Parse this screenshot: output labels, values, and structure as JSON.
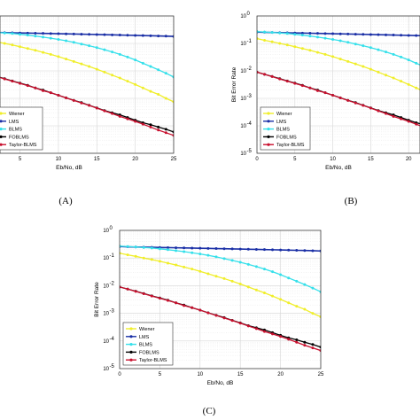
{
  "panels": [
    {
      "panel_label": "(A)",
      "chart_data": {
        "type": "line",
        "xlabel": "Eb/No, dB",
        "ylabel": "",
        "yscale": "log",
        "xlim": [
          0,
          25
        ],
        "ylim": [
          1e-05,
          1
        ],
        "xticks": [
          5,
          10,
          15,
          20,
          25
        ],
        "yticks": [],
        "grid": true,
        "legend_position": "bottom-left",
        "x": [
          0,
          1,
          2,
          3,
          4,
          5,
          6,
          7,
          8,
          9,
          10,
          11,
          12,
          13,
          14,
          15,
          16,
          17,
          18,
          19,
          20,
          21,
          22,
          23,
          24,
          25
        ],
        "series": [
          {
            "name": "Wiener",
            "color": "#f0ee2a",
            "values": [
              0.15,
              0.13,
              0.115,
              0.1,
              0.088,
              0.076,
              0.065,
              0.056,
              0.047,
              0.04,
              0.033,
              0.027,
              0.022,
              0.018,
              0.0145,
              0.0115,
              0.009,
              0.007,
              0.0055,
              0.0042,
              0.0032,
              0.0024,
              0.0018,
              0.0014,
              0.001,
              0.00075
            ]
          },
          {
            "name": "LMS",
            "color": "#1a2fa6",
            "values": [
              0.26,
              0.255,
              0.25,
              0.247,
              0.244,
              0.24,
              0.238,
              0.235,
              0.232,
              0.229,
              0.226,
              0.223,
              0.22,
              0.217,
              0.214,
              0.211,
              0.208,
              0.205,
              0.202,
              0.199,
              0.196,
              0.193,
              0.19,
              0.187,
              0.184,
              0.18
            ]
          },
          {
            "name": "BLMS",
            "color": "#35e0ea",
            "values": [
              0.27,
              0.26,
              0.25,
              0.24,
              0.23,
              0.215,
              0.2,
              0.185,
              0.17,
              0.155,
              0.14,
              0.125,
              0.11,
              0.095,
              0.082,
              0.07,
              0.059,
              0.049,
              0.04,
              0.032,
              0.025,
              0.019,
              0.0145,
              0.011,
              0.0082,
              0.006
            ]
          },
          {
            "name": "FOBLMS",
            "color": "#000000",
            "values": [
              0.009,
              0.0075,
              0.0063,
              0.0052,
              0.0043,
              0.0036,
              0.003,
              0.0024,
              0.002,
              0.0016,
              0.0013,
              0.00105,
              0.00085,
              0.0007,
              0.00056,
              0.00045,
              0.00036,
              0.0003,
              0.00025,
              0.0002,
              0.00016,
              0.00013,
              0.00011,
              9e-05,
              7.5e-05,
              6e-05
            ]
          },
          {
            "name": "Taylor-BLMS",
            "color": "#c8102e",
            "values": [
              0.009,
              0.0075,
              0.0062,
              0.0051,
              0.0042,
              0.0035,
              0.0029,
              0.0024,
              0.0019,
              0.0016,
              0.0013,
              0.00104,
              0.00084,
              0.00068,
              0.00055,
              0.00044,
              0.00035,
              0.00028,
              0.00022,
              0.00018,
              0.000145,
              0.000115,
              9e-05,
              7e-05,
              5.6e-05,
              4.5e-05
            ]
          }
        ]
      }
    },
    {
      "panel_label": "(B)",
      "chart_data": {
        "type": "line",
        "xlabel": "Eb/No, dB",
        "ylabel": "Bit Error Rate",
        "yscale": "log",
        "xlim": [
          0,
          25
        ],
        "ylim": [
          1e-05,
          1
        ],
        "xticks": [
          0,
          5,
          10,
          15,
          20
        ],
        "yticks": [
          "10^0",
          "10^-1",
          "10^-2",
          "10^-3",
          "10^-4",
          "10^-5"
        ],
        "grid": true,
        "legend_position": "bottom-left",
        "x": [
          0,
          1,
          2,
          3,
          4,
          5,
          6,
          7,
          8,
          9,
          10,
          11,
          12,
          13,
          14,
          15,
          16,
          17,
          18,
          19,
          20,
          21,
          22,
          23,
          24,
          25
        ],
        "series": [
          {
            "name": "Wiener",
            "color": "#f0ee2a",
            "values": [
              0.15,
              0.13,
              0.115,
              0.1,
              0.088,
              0.076,
              0.065,
              0.056,
              0.047,
              0.04,
              0.033,
              0.027,
              0.022,
              0.018,
              0.0145,
              0.0115,
              0.009,
              0.007,
              0.0055,
              0.0042,
              0.0032,
              0.0024,
              0.0018,
              0.0014,
              0.001,
              0.00075
            ]
          },
          {
            "name": "LMS",
            "color": "#1a2fa6",
            "values": [
              0.26,
              0.255,
              0.25,
              0.247,
              0.244,
              0.24,
              0.238,
              0.235,
              0.232,
              0.229,
              0.226,
              0.223,
              0.22,
              0.217,
              0.214,
              0.211,
              0.208,
              0.205,
              0.202,
              0.199,
              0.196,
              0.193,
              0.19,
              0.187,
              0.184,
              0.18
            ]
          },
          {
            "name": "BLMS",
            "color": "#35e0ea",
            "values": [
              0.27,
              0.26,
              0.25,
              0.24,
              0.23,
              0.215,
              0.2,
              0.185,
              0.17,
              0.155,
              0.14,
              0.125,
              0.11,
              0.095,
              0.082,
              0.07,
              0.059,
              0.049,
              0.04,
              0.032,
              0.025,
              0.019,
              0.0145,
              0.011,
              0.0082,
              0.006
            ]
          },
          {
            "name": "FOBLMS",
            "color": "#000000",
            "values": [
              0.009,
              0.0075,
              0.0063,
              0.0052,
              0.0043,
              0.0036,
              0.003,
              0.0024,
              0.002,
              0.0016,
              0.0013,
              0.00105,
              0.00085,
              0.0007,
              0.00056,
              0.00045,
              0.00036,
              0.0003,
              0.00025,
              0.0002,
              0.00016,
              0.00013,
              0.00011,
              9e-05,
              7.5e-05,
              6e-05
            ]
          },
          {
            "name": "Taylor-BLMS",
            "color": "#c8102e",
            "values": [
              0.009,
              0.0075,
              0.0062,
              0.0051,
              0.0042,
              0.0035,
              0.0029,
              0.0024,
              0.0019,
              0.0016,
              0.0013,
              0.00104,
              0.00084,
              0.00068,
              0.00055,
              0.00044,
              0.00035,
              0.00028,
              0.00022,
              0.00018,
              0.000145,
              0.000115,
              9e-05,
              7e-05,
              5.6e-05,
              4.5e-05
            ]
          }
        ]
      }
    },
    {
      "panel_label": "(C)",
      "chart_data": {
        "type": "line",
        "xlabel": "Eb/No, dB",
        "ylabel": "Bit Error Rate",
        "yscale": "log",
        "xlim": [
          0,
          25
        ],
        "ylim": [
          1e-05,
          1
        ],
        "xticks": [
          0,
          5,
          10,
          15,
          20,
          25
        ],
        "yticks": [
          "10^0",
          "10^-1",
          "10^-2",
          "10^-3",
          "10^-4",
          "10^-5"
        ],
        "grid": true,
        "legend_position": "bottom-left",
        "x": [
          0,
          1,
          2,
          3,
          4,
          5,
          6,
          7,
          8,
          9,
          10,
          11,
          12,
          13,
          14,
          15,
          16,
          17,
          18,
          19,
          20,
          21,
          22,
          23,
          24,
          25
        ],
        "series": [
          {
            "name": "Wiener",
            "color": "#f0ee2a",
            "values": [
              0.15,
              0.13,
              0.115,
              0.1,
              0.088,
              0.076,
              0.065,
              0.056,
              0.047,
              0.04,
              0.033,
              0.027,
              0.022,
              0.018,
              0.0145,
              0.0115,
              0.009,
              0.007,
              0.0055,
              0.0042,
              0.0032,
              0.0024,
              0.0018,
              0.0014,
              0.001,
              0.00075
            ]
          },
          {
            "name": "LMS",
            "color": "#1a2fa6",
            "values": [
              0.26,
              0.255,
              0.25,
              0.247,
              0.244,
              0.24,
              0.238,
              0.235,
              0.232,
              0.229,
              0.226,
              0.223,
              0.22,
              0.217,
              0.214,
              0.211,
              0.208,
              0.205,
              0.202,
              0.199,
              0.196,
              0.193,
              0.19,
              0.187,
              0.184,
              0.18
            ]
          },
          {
            "name": "BLMS",
            "color": "#35e0ea",
            "values": [
              0.27,
              0.26,
              0.25,
              0.24,
              0.23,
              0.215,
              0.2,
              0.185,
              0.17,
              0.155,
              0.14,
              0.125,
              0.11,
              0.095,
              0.082,
              0.07,
              0.059,
              0.049,
              0.04,
              0.032,
              0.025,
              0.019,
              0.0145,
              0.011,
              0.0082,
              0.006
            ]
          },
          {
            "name": "FOBLMS",
            "color": "#000000",
            "values": [
              0.009,
              0.0075,
              0.0063,
              0.0052,
              0.0043,
              0.0036,
              0.003,
              0.0024,
              0.002,
              0.0016,
              0.0013,
              0.00105,
              0.00085,
              0.0007,
              0.00056,
              0.00045,
              0.00036,
              0.0003,
              0.00025,
              0.0002,
              0.00016,
              0.00013,
              0.00011,
              9e-05,
              7.5e-05,
              6e-05
            ]
          },
          {
            "name": "Taylor-BLMS",
            "color": "#c8102e",
            "values": [
              0.009,
              0.0075,
              0.0062,
              0.0051,
              0.0042,
              0.0035,
              0.0029,
              0.0024,
              0.0019,
              0.0016,
              0.0013,
              0.00104,
              0.00084,
              0.00068,
              0.00055,
              0.00044,
              0.00035,
              0.00028,
              0.00022,
              0.00018,
              0.000145,
              0.000115,
              9e-05,
              7e-05,
              5.6e-05,
              4.5e-05
            ]
          }
        ]
      }
    }
  ]
}
